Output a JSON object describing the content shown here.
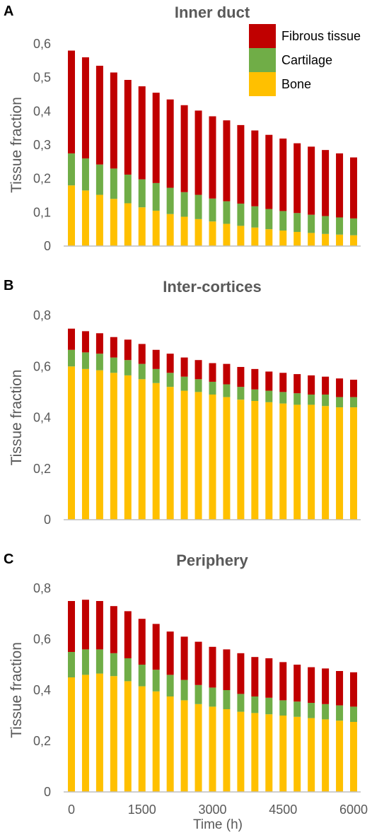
{
  "colors": {
    "bone": "#FFC000",
    "cartilage": "#70AD47",
    "fibrous": "#C00000",
    "axis": "#BFBFBF",
    "text": "#595959"
  },
  "legend": [
    "Fibrous tissue",
    "Cartilage",
    "Bone"
  ],
  "xlabel": "Time (h)",
  "xticks": [
    "0",
    "1500",
    "3000",
    "4500",
    "6000"
  ],
  "chart_data": [
    {
      "type": "bar",
      "panel": "A",
      "title": "Inner duct",
      "ylabel": "Tissue fraction",
      "stacked": true,
      "ylim": [
        0,
        0.6
      ],
      "yticks": [
        "0",
        "0,1",
        "0,2",
        "0,3",
        "0,4",
        "0,5",
        "0,6"
      ],
      "x": [
        0,
        300,
        600,
        900,
        1200,
        1500,
        1800,
        2100,
        2400,
        2700,
        3000,
        3300,
        3600,
        3900,
        4200,
        4500,
        4800,
        5100,
        5400,
        5700,
        6000
      ],
      "series": [
        {
          "name": "Bone",
          "values": [
            0.18,
            0.165,
            0.152,
            0.14,
            0.127,
            0.115,
            0.105,
            0.095,
            0.087,
            0.08,
            0.073,
            0.066,
            0.06,
            0.055,
            0.05,
            0.046,
            0.042,
            0.039,
            0.036,
            0.034,
            0.032
          ]
        },
        {
          "name": "Cartilage",
          "values": [
            0.095,
            0.095,
            0.09,
            0.09,
            0.085,
            0.083,
            0.082,
            0.078,
            0.073,
            0.072,
            0.068,
            0.067,
            0.066,
            0.063,
            0.06,
            0.058,
            0.056,
            0.054,
            0.053,
            0.051,
            0.05
          ]
        },
        {
          "name": "Fibrous tissue",
          "values": [
            0.305,
            0.3,
            0.293,
            0.285,
            0.281,
            0.276,
            0.268,
            0.262,
            0.258,
            0.25,
            0.244,
            0.24,
            0.233,
            0.225,
            0.22,
            0.215,
            0.207,
            0.202,
            0.196,
            0.19,
            0.181
          ]
        }
      ]
    },
    {
      "type": "bar",
      "panel": "B",
      "title": "Inter-cortices",
      "ylabel": "Tissue fraction",
      "stacked": true,
      "ylim": [
        0,
        0.8
      ],
      "yticks": [
        "0",
        "0,2",
        "0,4",
        "0,6",
        "0,8"
      ],
      "x": [
        0,
        300,
        600,
        900,
        1200,
        1500,
        1800,
        2100,
        2400,
        2700,
        3000,
        3300,
        3600,
        3900,
        4200,
        4500,
        4800,
        5100,
        5400,
        5700,
        6000
      ],
      "series": [
        {
          "name": "Bone",
          "values": [
            0.6,
            0.59,
            0.585,
            0.575,
            0.565,
            0.55,
            0.535,
            0.52,
            0.505,
            0.5,
            0.49,
            0.48,
            0.47,
            0.465,
            0.46,
            0.455,
            0.45,
            0.45,
            0.445,
            0.44,
            0.44
          ]
        },
        {
          "name": "Cartilage",
          "values": [
            0.065,
            0.065,
            0.065,
            0.06,
            0.06,
            0.06,
            0.055,
            0.055,
            0.055,
            0.05,
            0.05,
            0.05,
            0.05,
            0.045,
            0.045,
            0.045,
            0.045,
            0.04,
            0.045,
            0.04,
            0.04
          ]
        },
        {
          "name": "Fibrous tissue",
          "values": [
            0.083,
            0.083,
            0.08,
            0.08,
            0.08,
            0.078,
            0.075,
            0.075,
            0.075,
            0.075,
            0.073,
            0.08,
            0.078,
            0.08,
            0.075,
            0.075,
            0.075,
            0.075,
            0.07,
            0.073,
            0.068
          ]
        }
      ]
    },
    {
      "type": "bar",
      "panel": "C",
      "title": "Periphery",
      "ylabel": "Tissue fraction",
      "stacked": true,
      "ylim": [
        0,
        0.8
      ],
      "yticks": [
        "0",
        "0,2",
        "0,4",
        "0,6",
        "0,8"
      ],
      "x": [
        0,
        300,
        600,
        900,
        1200,
        1500,
        1800,
        2100,
        2400,
        2700,
        3000,
        3300,
        3600,
        3900,
        4200,
        4500,
        4800,
        5100,
        5400,
        5700,
        6000
      ],
      "series": [
        {
          "name": "Bone",
          "values": [
            0.45,
            0.46,
            0.465,
            0.455,
            0.435,
            0.415,
            0.395,
            0.375,
            0.36,
            0.345,
            0.335,
            0.325,
            0.315,
            0.31,
            0.305,
            0.3,
            0.295,
            0.29,
            0.285,
            0.28,
            0.275
          ]
        },
        {
          "name": "Cartilage",
          "values": [
            0.1,
            0.1,
            0.095,
            0.09,
            0.09,
            0.085,
            0.085,
            0.085,
            0.08,
            0.075,
            0.075,
            0.075,
            0.07,
            0.065,
            0.065,
            0.06,
            0.06,
            0.06,
            0.06,
            0.06,
            0.06
          ]
        },
        {
          "name": "Fibrous tissue",
          "values": [
            0.2,
            0.195,
            0.19,
            0.185,
            0.185,
            0.18,
            0.18,
            0.17,
            0.17,
            0.17,
            0.16,
            0.16,
            0.16,
            0.155,
            0.155,
            0.15,
            0.145,
            0.14,
            0.14,
            0.135,
            0.135
          ]
        }
      ]
    }
  ]
}
